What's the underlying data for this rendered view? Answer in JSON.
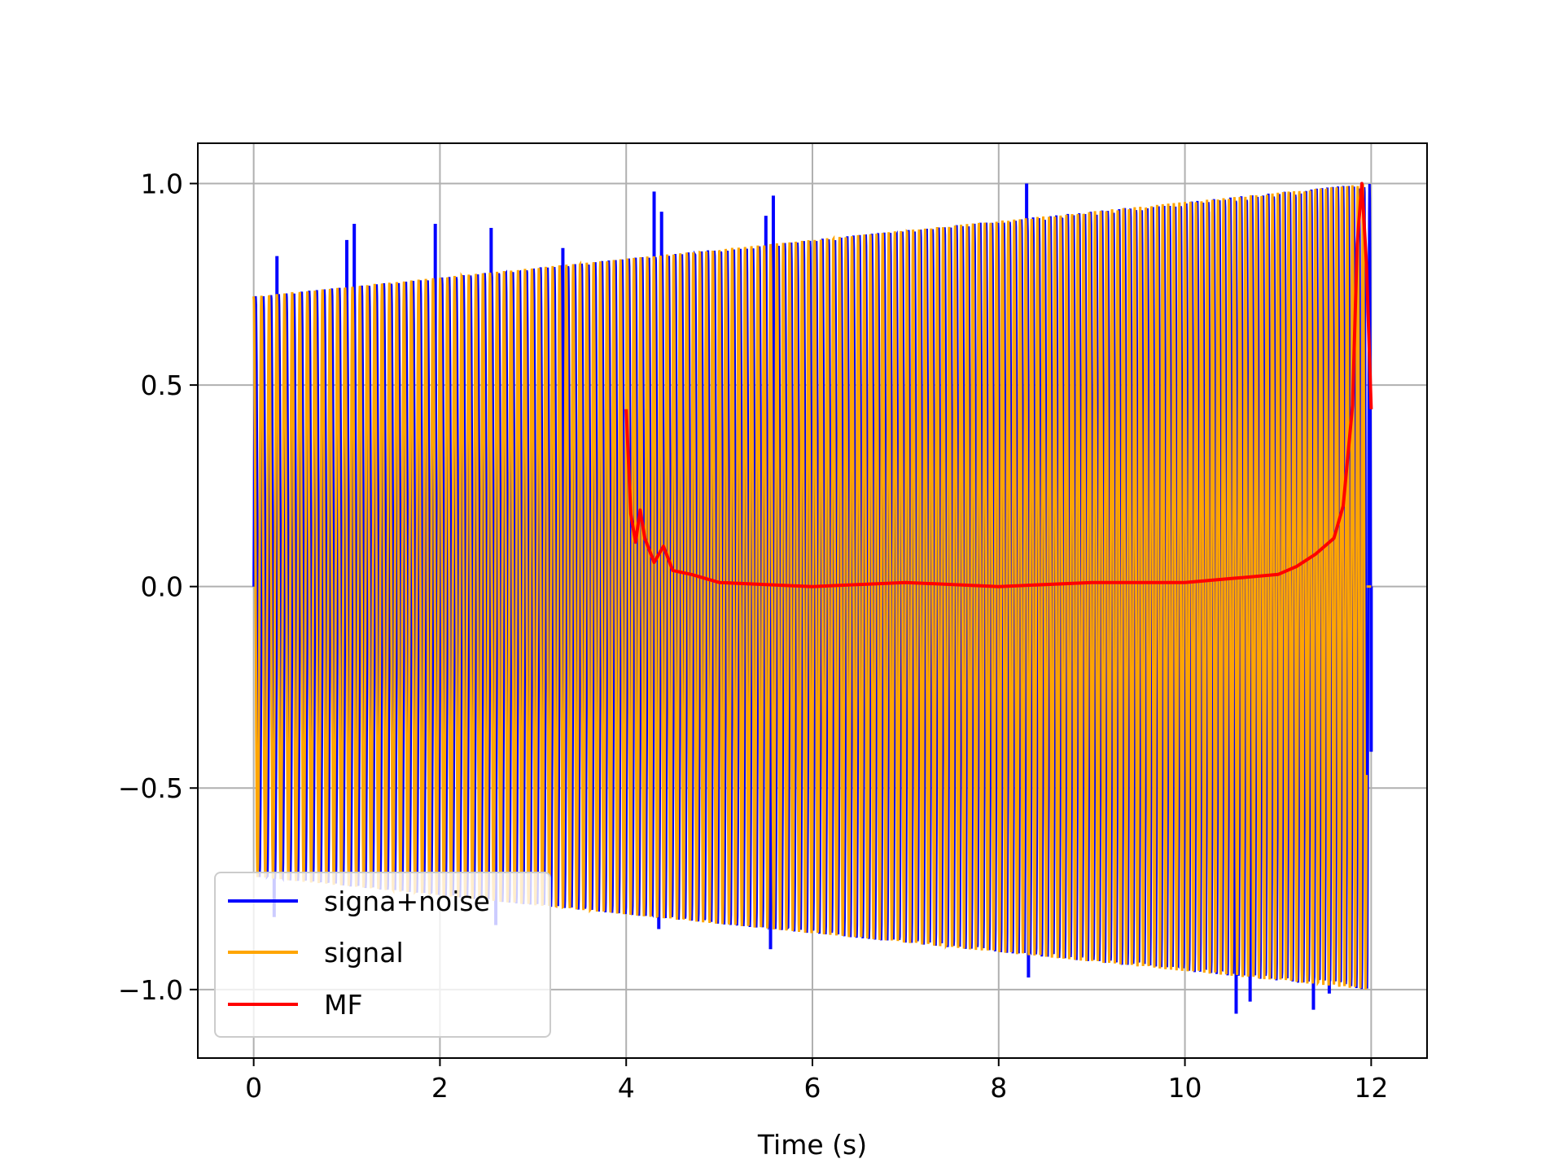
{
  "chart_data": {
    "type": "line",
    "title": "",
    "xlabel": "Time (s)",
    "ylabel": "",
    "xlim": [
      -0.6,
      12.6
    ],
    "ylim": [
      -1.17,
      1.1
    ],
    "x_ticks": [
      0,
      2,
      4,
      6,
      8,
      10,
      12
    ],
    "x_tick_labels": [
      "0",
      "2",
      "4",
      "6",
      "8",
      "10",
      "12"
    ],
    "y_ticks": [
      -1.0,
      -0.5,
      0.0,
      0.5,
      1.0
    ],
    "y_tick_labels": [
      "−1.0",
      "−0.5",
      "0.0",
      "0.5",
      "1.0"
    ],
    "grid": true,
    "legend_position": "lower-left",
    "series": [
      {
        "name": "signa+noise",
        "color": "#0000ff",
        "kind": "noisy-oscillation",
        "x_range": [
          0,
          12
        ],
        "spikes": [
          {
            "x": 0.02,
            "y": 0.7
          },
          {
            "x": 0.25,
            "y": 0.82
          },
          {
            "x": 0.22,
            "y": -0.82
          },
          {
            "x": 1.0,
            "y": 0.86
          },
          {
            "x": 1.08,
            "y": 0.9
          },
          {
            "x": 1.95,
            "y": 0.9
          },
          {
            "x": 2.55,
            "y": 0.89
          },
          {
            "x": 2.6,
            "y": -0.84
          },
          {
            "x": 3.32,
            "y": 0.84
          },
          {
            "x": 4.3,
            "y": 0.98
          },
          {
            "x": 4.38,
            "y": 0.93
          },
          {
            "x": 4.35,
            "y": -0.85
          },
          {
            "x": 5.5,
            "y": 0.92
          },
          {
            "x": 5.58,
            "y": 0.97
          },
          {
            "x": 5.55,
            "y": -0.9
          },
          {
            "x": 8.3,
            "y": 1.0
          },
          {
            "x": 8.32,
            "y": -0.97
          },
          {
            "x": 10.25,
            "y": 0.93
          },
          {
            "x": 10.55,
            "y": -1.06
          },
          {
            "x": 10.7,
            "y": -1.03
          },
          {
            "x": 11.38,
            "y": -1.05
          },
          {
            "x": 11.55,
            "y": -1.01
          },
          {
            "x": 11.98,
            "y": 0.47
          },
          {
            "x": 12.0,
            "y": -0.41
          }
        ]
      },
      {
        "name": "signal",
        "color": "#ffa500",
        "kind": "oscillation",
        "x_range": [
          0,
          11.95
        ],
        "envelope_start": 0.72,
        "envelope_end": 1.0,
        "cycles_per_second": 12
      },
      {
        "name": "MF",
        "color": "#ff0000",
        "kind": "line",
        "x": [
          4.0,
          4.05,
          4.1,
          4.15,
          4.2,
          4.3,
          4.4,
          4.5,
          4.7,
          5.0,
          5.5,
          6.0,
          7.0,
          8.0,
          9.0,
          10.0,
          10.5,
          11.0,
          11.2,
          11.4,
          11.6,
          11.7,
          11.8,
          11.85,
          11.9,
          11.95,
          12.0
        ],
        "y": [
          0.44,
          0.18,
          0.11,
          0.19,
          0.12,
          0.06,
          0.1,
          0.04,
          0.03,
          0.01,
          0.005,
          0.0,
          0.01,
          0.0,
          0.01,
          0.01,
          0.02,
          0.03,
          0.05,
          0.08,
          0.12,
          0.2,
          0.45,
          0.85,
          1.0,
          0.8,
          0.44
        ]
      }
    ]
  }
}
